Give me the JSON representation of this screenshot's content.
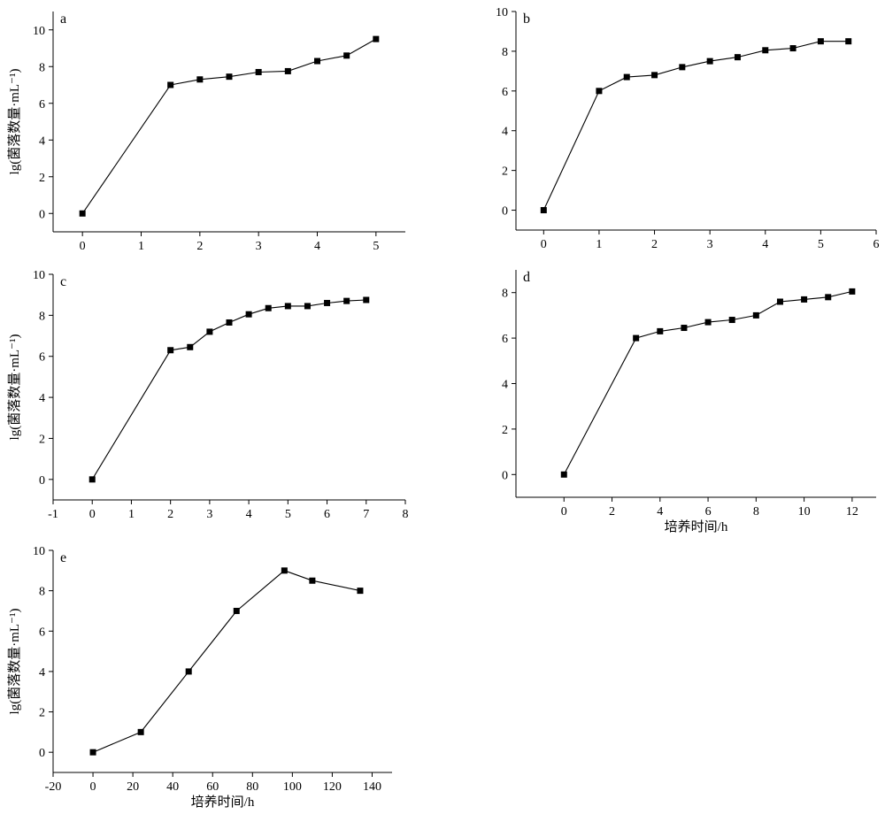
{
  "figure": {
    "ylabel": "lg(菌落数量·mL⁻¹)",
    "xlabel": "培养时间/h"
  },
  "chart_data": [
    {
      "type": "line",
      "panel_label": "a",
      "ylabel": "lg(菌落数量·mL⁻¹)",
      "xlabel": "",
      "xlim": [
        -0.5,
        5.5
      ],
      "ylim": [
        -1,
        11
      ],
      "xticks": [
        0,
        1,
        2,
        3,
        4,
        5
      ],
      "yticks": [
        0,
        2,
        4,
        6,
        8,
        10
      ],
      "grid": false,
      "series": [
        {
          "x": [
            0,
            1.5,
            2,
            2.5,
            3,
            3.5,
            4,
            4.5,
            5
          ],
          "y": [
            0,
            7.0,
            7.3,
            7.45,
            7.7,
            7.75,
            8.3,
            8.6,
            9.5
          ]
        }
      ]
    },
    {
      "type": "line",
      "panel_label": "b",
      "ylabel": "",
      "xlabel": "",
      "xlim": [
        -0.5,
        6
      ],
      "ylim": [
        -1,
        10
      ],
      "xticks": [
        0,
        1,
        2,
        3,
        4,
        5,
        6
      ],
      "yticks": [
        0,
        2,
        4,
        6,
        8,
        10
      ],
      "grid": false,
      "series": [
        {
          "x": [
            0,
            1,
            1.5,
            2,
            2.5,
            3,
            3.5,
            4,
            4.5,
            5,
            5.5
          ],
          "y": [
            0,
            6.0,
            6.7,
            6.8,
            7.2,
            7.5,
            7.7,
            8.05,
            8.15,
            8.5,
            8.5
          ]
        }
      ]
    },
    {
      "type": "line",
      "panel_label": "c",
      "ylabel": "lg(菌落数量·mL⁻¹)",
      "xlabel": "",
      "xlim": [
        -1,
        8
      ],
      "ylim": [
        -1,
        10
      ],
      "xticks": [
        -1,
        0,
        1,
        2,
        3,
        4,
        5,
        6,
        7,
        8
      ],
      "yticks": [
        0,
        2,
        4,
        6,
        8,
        10
      ],
      "grid": false,
      "series": [
        {
          "x": [
            0,
            2,
            2.5,
            3,
            3.5,
            4,
            4.5,
            5,
            5.5,
            6,
            6.5,
            7
          ],
          "y": [
            0,
            6.3,
            6.45,
            7.2,
            7.65,
            8.05,
            8.35,
            8.45,
            8.45,
            8.6,
            8.7,
            8.75
          ]
        }
      ]
    },
    {
      "type": "line",
      "panel_label": "d",
      "ylabel": "",
      "xlabel": "培养时间/h",
      "xlim": [
        -2,
        13
      ],
      "ylim": [
        -1,
        9
      ],
      "xticks": [
        0,
        2,
        4,
        6,
        8,
        10,
        12
      ],
      "yticks": [
        0,
        2,
        4,
        6,
        8
      ],
      "grid": false,
      "series": [
        {
          "x": [
            0,
            3,
            4,
            5,
            6,
            7,
            8,
            9,
            10,
            11,
            12
          ],
          "y": [
            0,
            6.0,
            6.3,
            6.45,
            6.7,
            6.8,
            7.0,
            7.6,
            7.7,
            7.8,
            8.05
          ]
        }
      ]
    },
    {
      "type": "line",
      "panel_label": "e",
      "ylabel": "lg(菌落数量·mL⁻¹)",
      "xlabel": "培养时间/h",
      "xlim": [
        -20,
        150
      ],
      "ylim": [
        -1,
        10
      ],
      "xticks": [
        -20,
        0,
        20,
        40,
        60,
        80,
        100,
        120,
        140
      ],
      "yticks": [
        0,
        2,
        4,
        6,
        8,
        10
      ],
      "grid": false,
      "series": [
        {
          "x": [
            0,
            24,
            48,
            72,
            96,
            110,
            134
          ],
          "y": [
            0,
            1,
            4,
            7,
            9,
            8.5,
            8
          ]
        }
      ]
    }
  ]
}
